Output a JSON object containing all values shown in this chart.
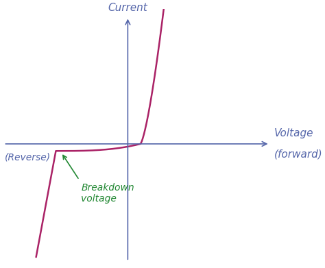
{
  "background_color": "#ffffff",
  "axis_color": "#5566aa",
  "curve_color": "#aa2266",
  "annotation_color": "#228833",
  "label_color": "#5566aa",
  "current_label": "Current",
  "voltage_label_line1": "Voltage",
  "voltage_label_line2": "(forward)",
  "reverse_label": "(Reverse)",
  "breakdown_label": "Breakdown\nvoltage",
  "figsize": [
    4.74,
    3.91
  ],
  "dpi": 100,
  "xlim": [
    -3.5,
    4.2
  ],
  "ylim": [
    -3.8,
    4.2
  ],
  "origin_x": 0.0,
  "origin_y": 0.0,
  "breakdown_x": -2.0,
  "breakdown_y": -0.22,
  "forward_knee_x": 0.35,
  "font_size_label": 11,
  "font_size_small": 10
}
